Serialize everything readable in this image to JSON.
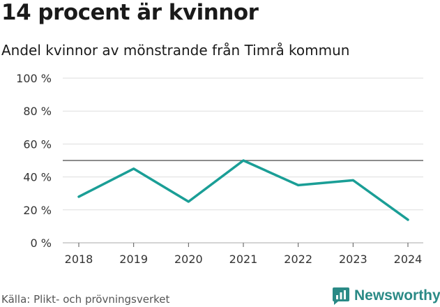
{
  "title": "14 procent är kvinnor",
  "subtitle": "Andel kvinnor av mönstrande från Timrå kommun",
  "source": "Källa: Plikt- och prövningsverket",
  "brand": "Newsworthy",
  "colors": {
    "line": "#1a9e96",
    "grid": "#dddddd",
    "reference": "#666666",
    "brand": "#2a8a86"
  },
  "chart_data": {
    "type": "line",
    "x": [
      "2018",
      "2019",
      "2020",
      "2021",
      "2022",
      "2023",
      "2024"
    ],
    "series": [
      {
        "values": [
          28,
          45,
          25,
          50,
          35,
          38,
          14
        ]
      }
    ],
    "ylim": [
      0,
      100
    ],
    "yticks": [
      0,
      20,
      40,
      60,
      80,
      100
    ],
    "ytick_labels": [
      "0 %",
      "20 %",
      "40 %",
      "60 %",
      "80 %",
      "100 %"
    ],
    "reference_line": 50,
    "grid": true
  }
}
